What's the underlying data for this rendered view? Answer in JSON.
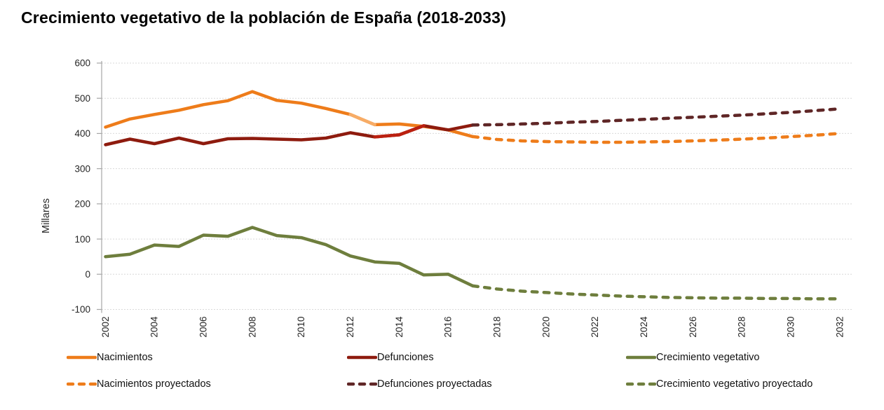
{
  "title": "Crecimiento vegetativo de la población de España (2018-2033)",
  "chart_data": {
    "type": "line",
    "title": "Crecimiento vegetativo de la población de España (2018-2033)",
    "xlabel": "",
    "ylabel": "Millares",
    "ylim": [
      -100,
      600
    ],
    "yticks": [
      600,
      500,
      400,
      300,
      200,
      100,
      0,
      -100
    ],
    "x_range": [
      2002,
      2032
    ],
    "xticks": [
      2002,
      2004,
      2006,
      2008,
      2010,
      2012,
      2014,
      2016,
      2018,
      2020,
      2022,
      2024,
      2026,
      2028,
      2030,
      2032
    ],
    "grid": "horizontal-dashed",
    "legend_position": "bottom",
    "series": [
      {
        "name": "Nacimientos",
        "style": "solid",
        "color": "#EE7C1A",
        "x": [
          2002,
          2003,
          2004,
          2005,
          2006,
          2007,
          2008,
          2009,
          2010,
          2011,
          2012,
          2013,
          2014,
          2015,
          2016,
          2017
        ],
        "values": [
          418,
          441,
          454,
          466,
          482,
          493,
          519,
          494,
          486,
          471,
          454,
          425,
          427,
          420,
          410,
          391
        ]
      },
      {
        "name": "Defunciones",
        "style": "solid",
        "color": "#8E1B0E",
        "x": [
          2002,
          2003,
          2004,
          2005,
          2006,
          2007,
          2008,
          2009,
          2010,
          2011,
          2012,
          2013,
          2014,
          2015,
          2016,
          2017
        ],
        "values": [
          368,
          384,
          371,
          387,
          371,
          385,
          386,
          384,
          382,
          387,
          402,
          390,
          396,
          422,
          410,
          424
        ]
      },
      {
        "name": "Crecimiento vegetativo",
        "style": "solid",
        "color": "#6E7E3D",
        "x": [
          2002,
          2003,
          2004,
          2005,
          2006,
          2007,
          2008,
          2009,
          2010,
          2011,
          2012,
          2013,
          2014,
          2015,
          2016,
          2017
        ],
        "values": [
          50,
          57,
          83,
          79,
          111,
          108,
          133,
          110,
          104,
          84,
          52,
          35,
          31,
          -2,
          0,
          -33
        ]
      },
      {
        "name": "Nacimientos proyectados",
        "style": "dashed",
        "color": "#EE7C1A",
        "x": [
          2017,
          2018,
          2019,
          2020,
          2021,
          2022,
          2023,
          2024,
          2025,
          2026,
          2027,
          2028,
          2029,
          2030,
          2031,
          2032
        ],
        "values": [
          391,
          383,
          379,
          377,
          376,
          375,
          375,
          376,
          377,
          379,
          381,
          384,
          387,
          391,
          395,
          400
        ]
      },
      {
        "name": "Defunciones proyectadas",
        "style": "dashed",
        "color": "#5F2626",
        "x": [
          2017,
          2018,
          2019,
          2020,
          2021,
          2022,
          2023,
          2024,
          2025,
          2026,
          2027,
          2028,
          2029,
          2030,
          2031,
          2032
        ],
        "values": [
          424,
          425,
          427,
          429,
          432,
          434,
          437,
          440,
          443,
          446,
          449,
          452,
          456,
          460,
          465,
          470
        ]
      },
      {
        "name": "Crecimiento vegetativo proyectado",
        "style": "dashed",
        "color": "#6E7E3D",
        "x": [
          2017,
          2018,
          2019,
          2020,
          2021,
          2022,
          2023,
          2024,
          2025,
          2026,
          2027,
          2028,
          2029,
          2030,
          2031,
          2032
        ],
        "values": [
          -33,
          -42,
          -48,
          -52,
          -56,
          -59,
          -62,
          -64,
          -66,
          -67,
          -68,
          -68,
          -69,
          -69,
          -70,
          -70
        ]
      }
    ],
    "overlay_segments": [
      {
        "series": "Nacimientos",
        "color": "#F7AC66",
        "x": [
          2012,
          2013
        ],
        "values": [
          454,
          425
        ]
      },
      {
        "series": "Defunciones",
        "color": "#BB2010",
        "x": [
          2013,
          2014,
          2015
        ],
        "values": [
          390,
          396,
          422
        ]
      }
    ]
  }
}
